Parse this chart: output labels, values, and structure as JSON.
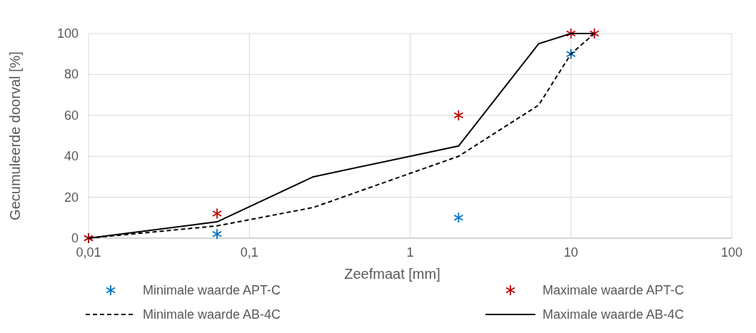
{
  "chart_data": {
    "type": "line",
    "xlabel": "Zeefmaat [mm]",
    "ylabel": "Gecumuleerde doorval [%]",
    "log": "x",
    "xlim": [
      0.01,
      100
    ],
    "xticks": [
      {
        "value": 0.01,
        "label": "0,01"
      },
      {
        "value": 0.1,
        "label": "0,1"
      },
      1,
      10,
      100
    ],
    "ylim": [
      0,
      100
    ],
    "yticks": [
      0,
      20,
      40,
      60,
      80,
      100
    ],
    "grid": true,
    "legend": "bottom",
    "series": [
      {
        "name": "Minimale waarde APT-C",
        "type": "scatter",
        "marker": "cross",
        "color": "#0070c0",
        "x": [
          0.01,
          0.063,
          2,
          10
        ],
        "values": [
          0,
          2,
          10,
          90
        ]
      },
      {
        "name": "Maximale waarde APT-C",
        "type": "scatter",
        "marker": "cross",
        "color": "#c00000",
        "x": [
          0.01,
          0.063,
          2,
          10,
          14
        ],
        "values": [
          0,
          12,
          60,
          100,
          100
        ]
      },
      {
        "name": "Minimale waarde AB-4C",
        "type": "line",
        "marker": "none",
        "line_style": "dashed",
        "color": "#000000",
        "x": [
          0.01,
          0.063,
          0.25,
          2,
          6.3,
          10,
          14
        ],
        "values": [
          0,
          6,
          15,
          40,
          65,
          90,
          100
        ]
      },
      {
        "name": "Maximale waarde AB-4C",
        "type": "line",
        "marker": "none",
        "line_style": "solid",
        "color": "#000000",
        "x": [
          0.01,
          0.063,
          0.25,
          2,
          6.3,
          10,
          14
        ],
        "values": [
          0,
          8,
          30,
          45,
          95,
          100,
          100
        ]
      }
    ]
  }
}
